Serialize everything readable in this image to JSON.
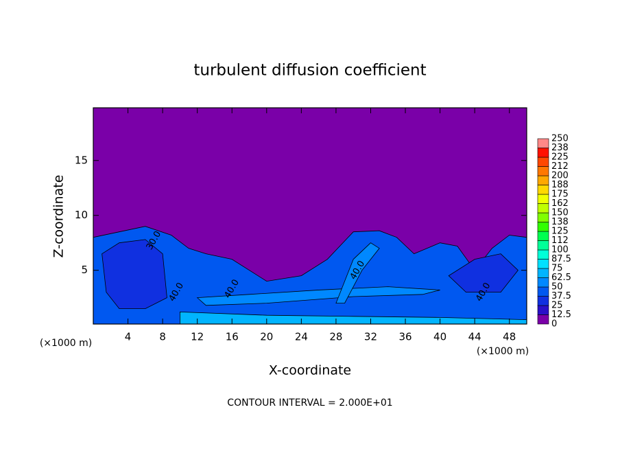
{
  "chart_data": {
    "type": "contour",
    "title": "turbulent diffusion coefficient",
    "xlabel": "X-coordinate",
    "ylabel": "Z-coordinate",
    "x_unit_label": "(×1000 m)",
    "footer": "CONTOUR INTERVAL = 2.000E+01",
    "xlim": [
      0,
      50
    ],
    "xticks": [
      4,
      8,
      12,
      16,
      20,
      24,
      28,
      32,
      36,
      40,
      44,
      48
    ],
    "ylim": [
      0.1,
      19.8
    ],
    "yticks": [
      5,
      10,
      15
    ],
    "background_level": 0,
    "colorbar_ticks": [
      0,
      12.5,
      25,
      37.5,
      50,
      62.5,
      75,
      87.5,
      100,
      {
        "value": 112.5,
        "label": "112"
      },
      125,
      {
        "value": 137.5,
        "label": "138"
      },
      150,
      {
        "value": 162.5,
        "label": "162"
      },
      175,
      {
        "value": 187.5,
        "label": "188"
      },
      200,
      {
        "value": 212.5,
        "label": "212"
      },
      225,
      {
        "value": 237.5,
        "label": "238"
      },
      250
    ],
    "colorbar_colors": [
      "#7a00a8",
      "#2a10c8",
      "#1030e0",
      "#0058f0",
      "#0088ff",
      "#00b4ff",
      "#00e0ff",
      "#00ffd8",
      "#00ff98",
      "#00ff50",
      "#30ff00",
      "#80ff00",
      "#c0ff00",
      "#f0ff00",
      "#ffd800",
      "#ffa800",
      "#ff7800",
      "#ff4800",
      "#ff1000",
      "#ff8888"
    ],
    "regions": [
      {
        "level": 40,
        "x": [
          0,
          3,
          6,
          9,
          11,
          13,
          16,
          20,
          24,
          27,
          30,
          33,
          35,
          37,
          40,
          42,
          44,
          46,
          48,
          50,
          50,
          0
        ],
        "y": [
          8,
          8.5,
          9,
          8.2,
          7,
          6.5,
          6,
          4,
          4.5,
          6,
          8.5,
          8.6,
          8,
          6.5,
          7.5,
          7.2,
          5,
          7,
          8.2,
          8,
          0.1,
          0.1
        ]
      },
      {
        "level": 25,
        "x": [
          1,
          3,
          6,
          8,
          8.5,
          6,
          3,
          1.5
        ],
        "y": [
          6.5,
          7.5,
          7.8,
          6.5,
          2.5,
          1.5,
          1.5,
          3
        ]
      },
      {
        "level": 60,
        "x": [
          12,
          18,
          26,
          34,
          40,
          38,
          30,
          20,
          13
        ],
        "y": [
          2.5,
          2.8,
          3.2,
          3.5,
          3.2,
          2.8,
          2.6,
          2,
          1.8
        ]
      },
      {
        "level": 60,
        "x": [
          28,
          30,
          32,
          33,
          31,
          29
        ],
        "y": [
          2,
          6,
          7.5,
          7,
          5,
          2
        ]
      },
      {
        "level": 25,
        "x": [
          41,
          44,
          47,
          49,
          47,
          43
        ],
        "y": [
          4.5,
          6,
          6.5,
          5,
          3,
          3
        ]
      },
      {
        "level": 70,
        "x": [
          10,
          20,
          30,
          40,
          50,
          50,
          40,
          30,
          20,
          10
        ],
        "y": [
          1.2,
          0.9,
          0.8,
          0.7,
          0.5,
          0.1,
          0.1,
          0.1,
          0.1,
          0.1
        ]
      }
    ],
    "contour_labels": [
      {
        "text": "30.0",
        "x": 7,
        "y": 7.7
      },
      {
        "text": "40.0",
        "x": 9.6,
        "y": 3
      },
      {
        "text": "40.0",
        "x": 16,
        "y": 3.3
      },
      {
        "text": "40.0",
        "x": 30.5,
        "y": 5
      },
      {
        "text": "40.0",
        "x": 45,
        "y": 3
      }
    ]
  }
}
